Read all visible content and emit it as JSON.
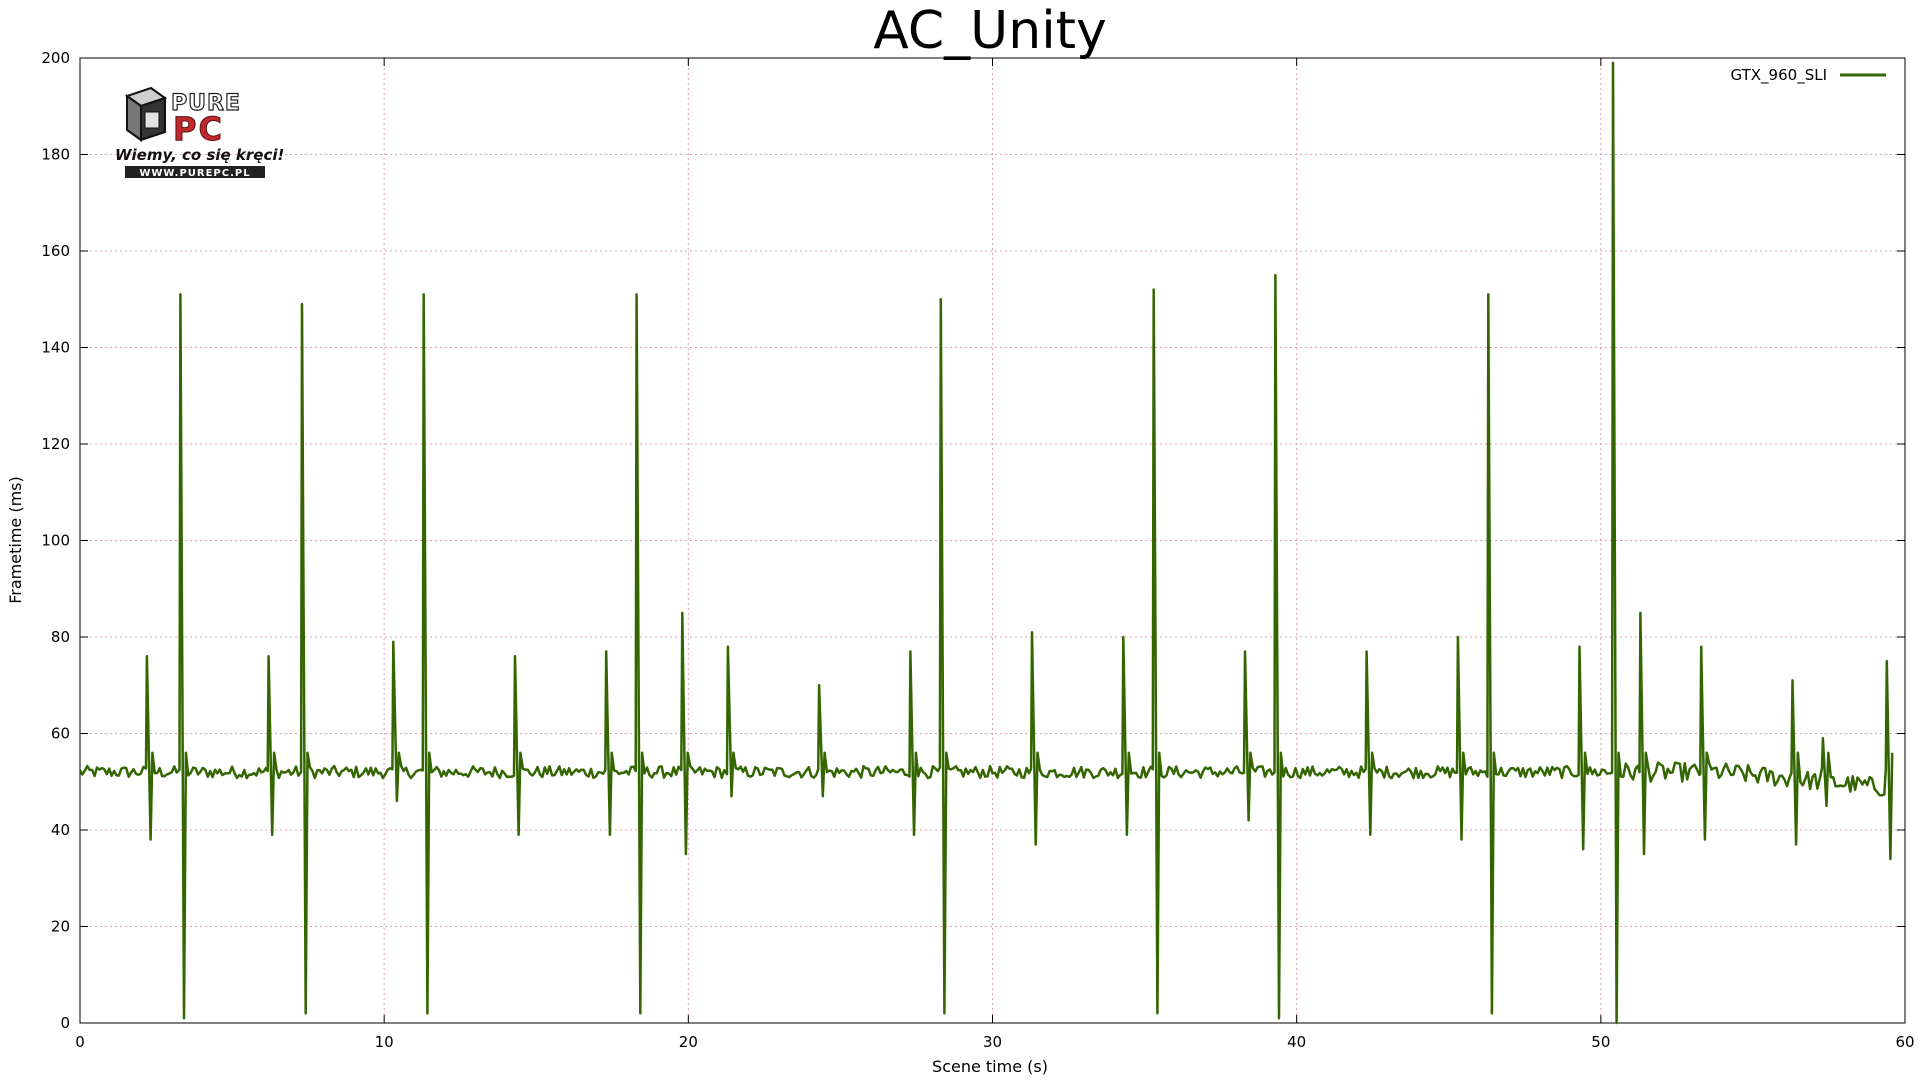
{
  "chart_data": {
    "type": "line",
    "title": "AC_Unity",
    "xlabel": "Scene time (s)",
    "ylabel": "Frametime (ms)",
    "xlim": [
      0,
      60
    ],
    "ylim": [
      0,
      200
    ],
    "x_ticks": [
      "0",
      "10",
      "20",
      "30",
      "40",
      "50",
      "60"
    ],
    "y_ticks": [
      "0",
      "20",
      "40",
      "60",
      "80",
      "100",
      "120",
      "140",
      "160",
      "180",
      "200"
    ],
    "grid": true,
    "legend_position": "top-right",
    "series": [
      {
        "name": "GTX_960_SLI",
        "color": "#336600",
        "baseline": 52,
        "spikes": [
          {
            "x": 2.2,
            "hi": 76,
            "lo": 38
          },
          {
            "x": 3.3,
            "hi": 151,
            "lo": 1
          },
          {
            "x": 6.2,
            "hi": 76,
            "lo": 39
          },
          {
            "x": 7.3,
            "hi": 149,
            "lo": 2
          },
          {
            "x": 10.3,
            "hi": 79,
            "lo": 46
          },
          {
            "x": 11.3,
            "hi": 151,
            "lo": 2
          },
          {
            "x": 14.3,
            "hi": 76,
            "lo": 39
          },
          {
            "x": 17.3,
            "hi": 77,
            "lo": 39
          },
          {
            "x": 18.3,
            "hi": 151,
            "lo": 2
          },
          {
            "x": 19.8,
            "hi": 85,
            "lo": 35
          },
          {
            "x": 21.3,
            "hi": 78,
            "lo": 47
          },
          {
            "x": 24.3,
            "hi": 70,
            "lo": 47
          },
          {
            "x": 27.3,
            "hi": 77,
            "lo": 39
          },
          {
            "x": 28.3,
            "hi": 150,
            "lo": 2
          },
          {
            "x": 31.3,
            "hi": 81,
            "lo": 37
          },
          {
            "x": 34.3,
            "hi": 80,
            "lo": 39
          },
          {
            "x": 35.3,
            "hi": 152,
            "lo": 2
          },
          {
            "x": 38.3,
            "hi": 77,
            "lo": 42
          },
          {
            "x": 39.3,
            "hi": 155,
            "lo": 1
          },
          {
            "x": 42.3,
            "hi": 77,
            "lo": 39
          },
          {
            "x": 45.3,
            "hi": 80,
            "lo": 38
          },
          {
            "x": 46.3,
            "hi": 151,
            "lo": 2
          },
          {
            "x": 49.3,
            "hi": 78,
            "lo": 36
          },
          {
            "x": 50.4,
            "hi": 199,
            "lo": 0
          },
          {
            "x": 51.3,
            "hi": 85,
            "lo": 35
          },
          {
            "x": 53.3,
            "hi": 78,
            "lo": 38
          },
          {
            "x": 56.3,
            "hi": 71,
            "lo": 37
          },
          {
            "x": 57.3,
            "hi": 59,
            "lo": 45
          },
          {
            "x": 59.4,
            "hi": 75,
            "lo": 34
          }
        ]
      }
    ]
  },
  "logo": {
    "line1": "PURE",
    "line2": "PC",
    "tagline": "Wiemy, co się kręci!",
    "url": "WWW.PUREPC.PL"
  }
}
